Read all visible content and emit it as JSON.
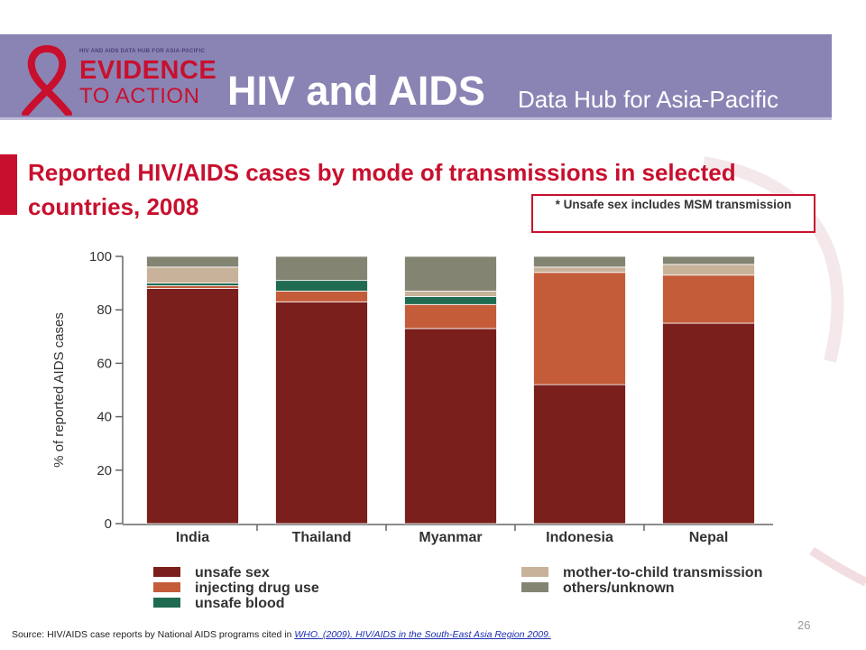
{
  "header": {
    "logo_tagline": "HIV AND AIDS DATA HUB FOR ASIA-PACIFIC",
    "logo_line1": "EVIDENCE",
    "logo_line2": "TO ACTION",
    "title": "HIV and AIDS",
    "subtitle": "Data Hub for Asia-Pacific"
  },
  "slide": {
    "title": "Reported HIV/AIDS cases by mode of transmissions in selected countries, 2008",
    "note": "* Unsafe sex includes MSM transmission",
    "source_prefix": "Source: HIV/AIDS case reports by  National AIDS programs cited in ",
    "source_link": "WHO. (2009). HIV/AIDS in the South-East Asia Region 2009.",
    "page_number": "26"
  },
  "colors": {
    "brand_red": "#c8102e",
    "banner": "#8a84b5"
  },
  "chart_data": {
    "type": "bar",
    "stacked": true,
    "categories": [
      "India",
      "Thailand",
      "Myanmar",
      "Indonesia",
      "Nepal"
    ],
    "ylabel": "% of reported AIDS cases",
    "ylim": [
      0,
      100
    ],
    "yticks": [
      "0",
      "20",
      "40",
      "60",
      "80",
      "100"
    ],
    "legend_position": "bottom",
    "series": [
      {
        "name": "unsafe sex",
        "color": "#7a1f1c",
        "values": [
          88,
          83,
          73,
          52,
          75
        ]
      },
      {
        "name": "injecting drug use",
        "color": "#c45c3a",
        "values": [
          1,
          4,
          9,
          42,
          18
        ]
      },
      {
        "name": "unsafe blood",
        "color": "#1f6b52",
        "values": [
          1,
          4,
          3,
          0,
          0
        ]
      },
      {
        "name": "mother-to-child transmission",
        "color": "#c8b29a",
        "values": [
          6,
          0,
          2,
          2,
          4
        ]
      },
      {
        "name": "others/unknown",
        "color": "#848473",
        "values": [
          4,
          9,
          13,
          4,
          3
        ]
      }
    ]
  }
}
